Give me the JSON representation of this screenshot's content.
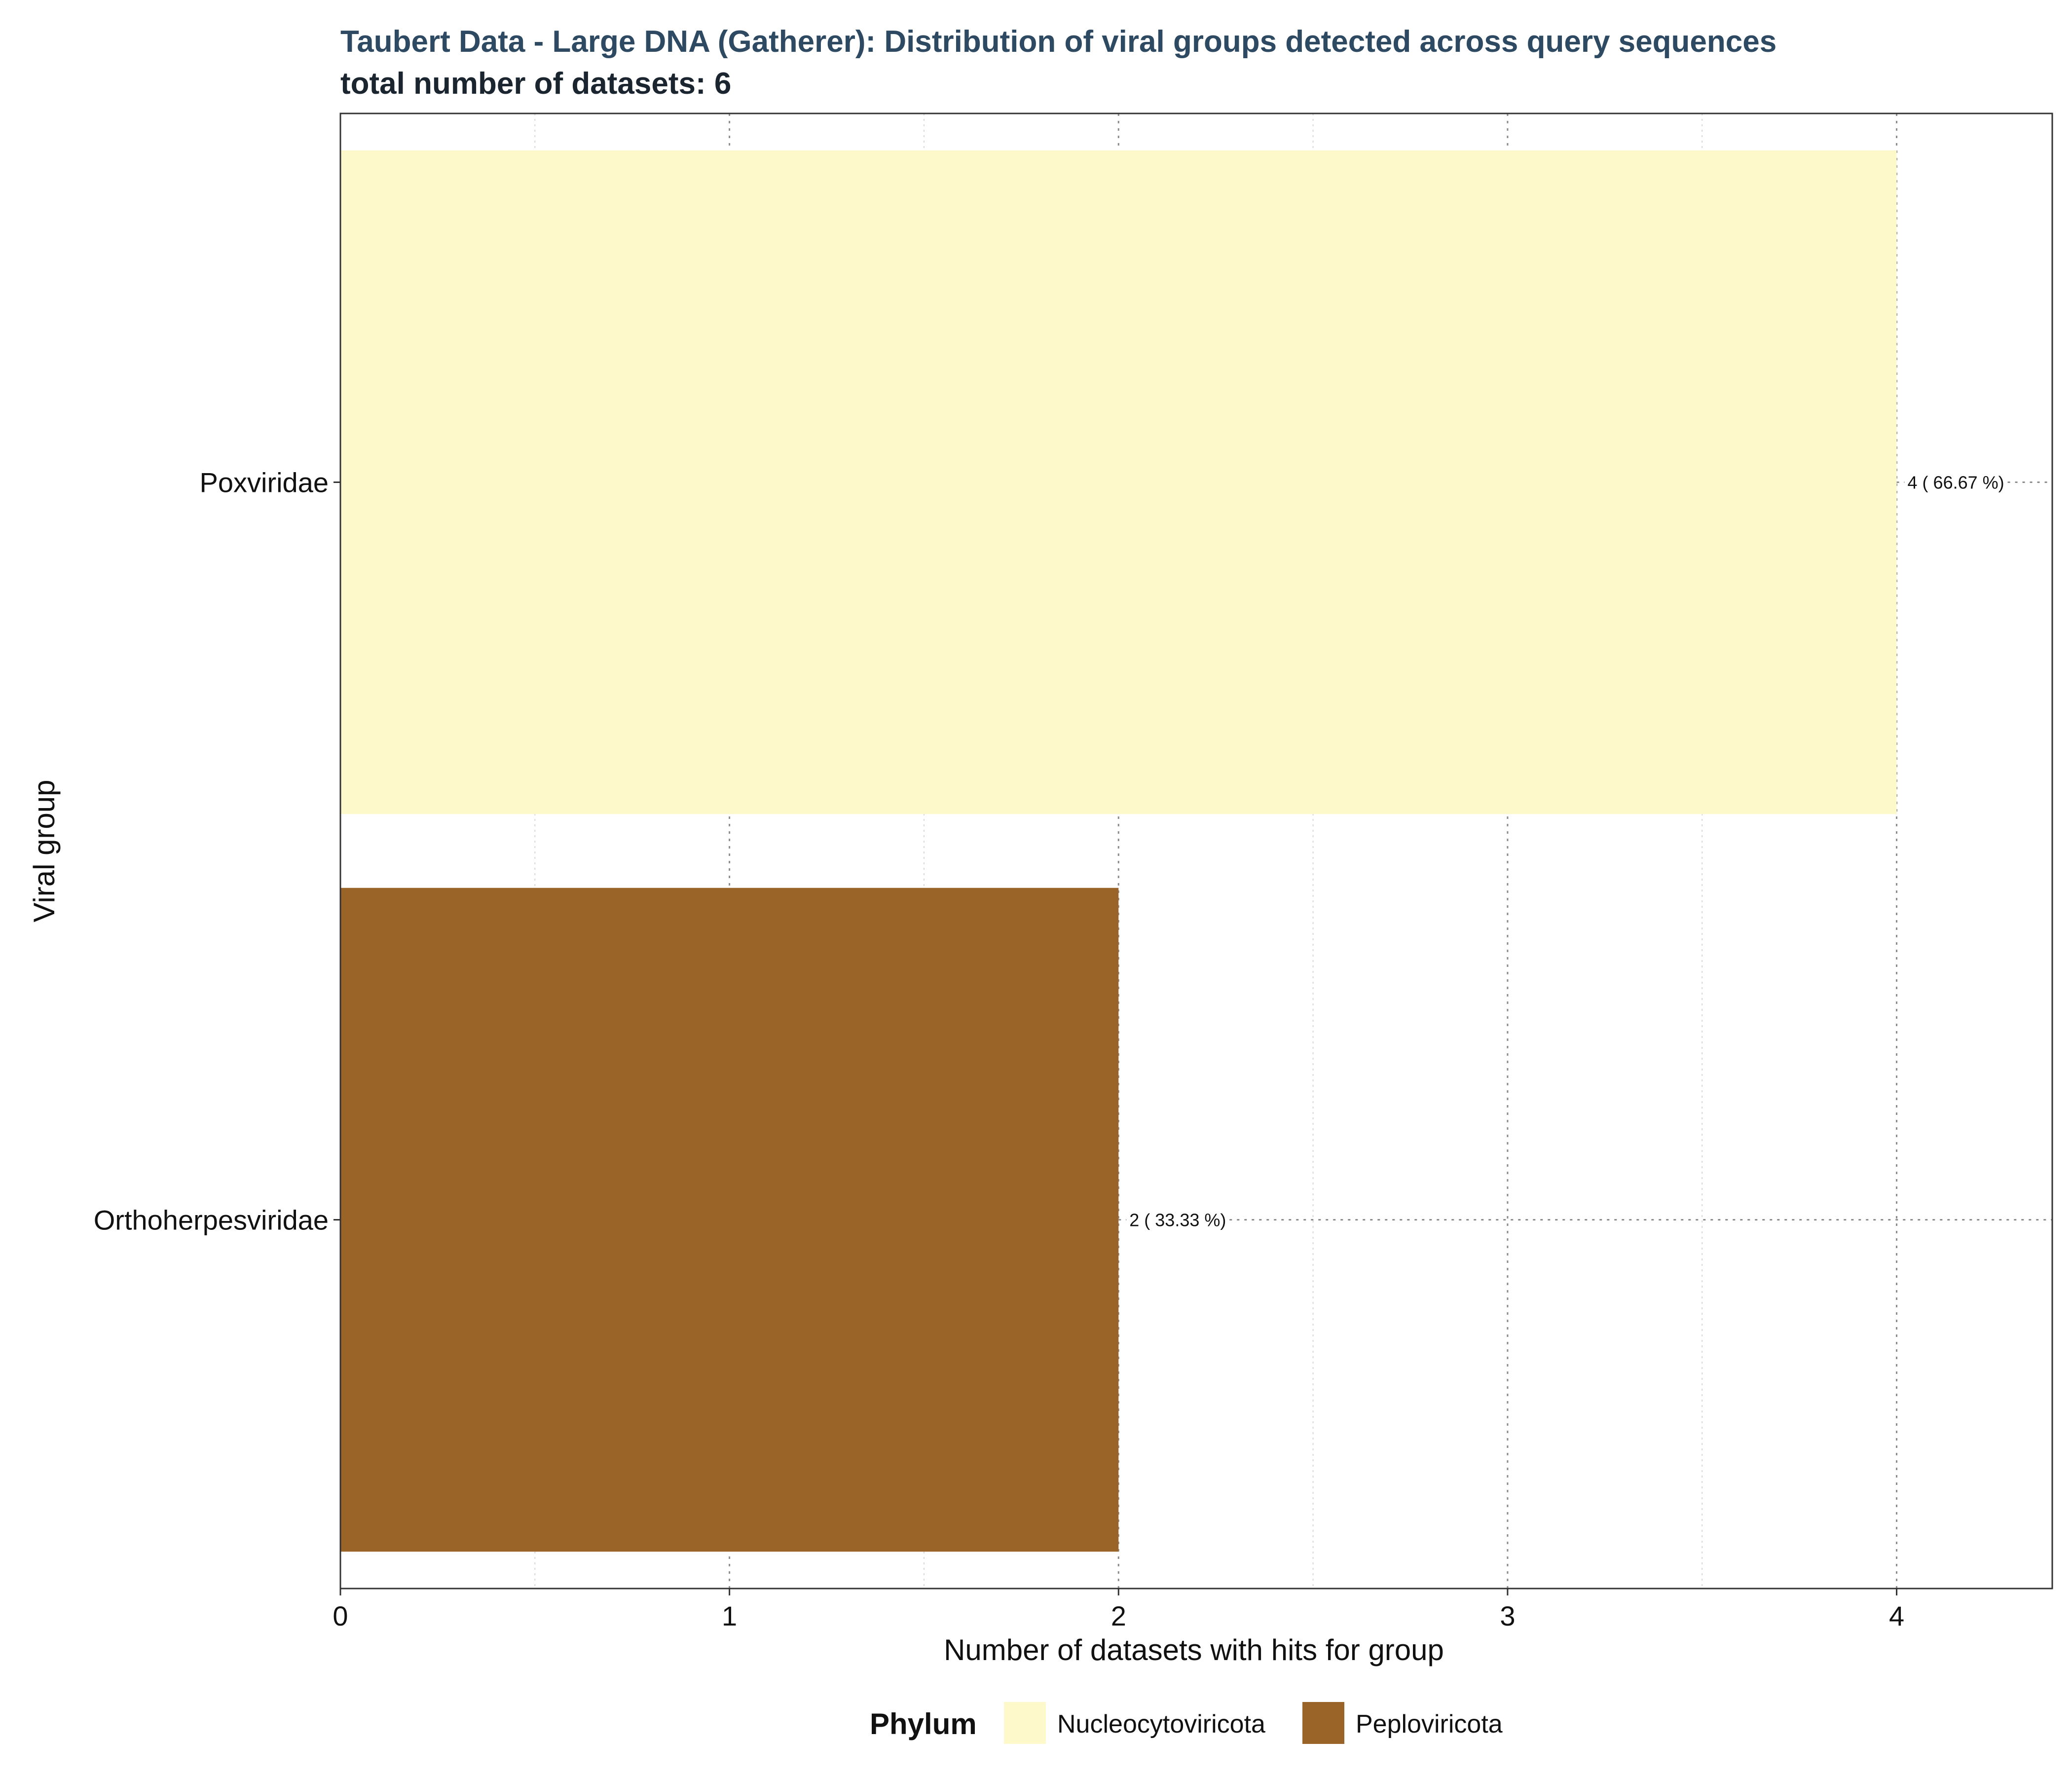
{
  "chart_data": {
    "type": "bar",
    "orientation": "horizontal",
    "title": "Taubert Data - Large DNA (Gatherer): Distribution of viral groups detected across query sequences",
    "subtitle": "total number of datasets: 6",
    "xlabel": "Number of datasets with hits for group",
    "ylabel": "Viral group",
    "xlim": [
      0,
      4.4
    ],
    "x_ticks": [
      "0",
      "1",
      "2",
      "3",
      "4"
    ],
    "grid": true,
    "legend_position": "bottom",
    "legend_title": "Phylum",
    "legend": [
      {
        "name": "Nucleocytoviricota",
        "color": "#fef9cb"
      },
      {
        "name": "Peploviricota",
        "color": "#9a6327"
      }
    ],
    "categories": [
      "Poxviridae",
      "Orthoherpesviridae"
    ],
    "values": [
      4,
      2
    ],
    "phylum": [
      "Nucleocytoviricota",
      "Peploviricota"
    ],
    "data_labels": [
      "4  ( 66.67 %)",
      "2  ( 33.33 %)"
    ],
    "colors": {
      "Nucleocytoviricota": "#fef9cb",
      "Peploviricota": "#9a6327"
    }
  }
}
